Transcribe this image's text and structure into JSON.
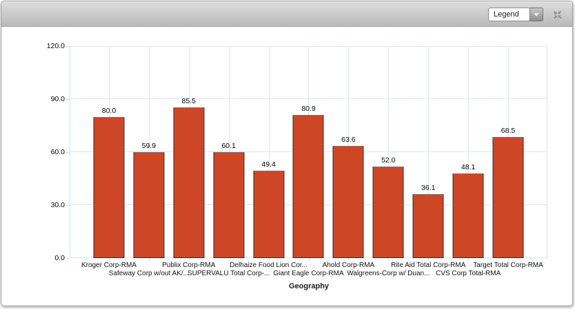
{
  "toolbar": {
    "legend_label": "Legend",
    "dropdown_icon": "chevron-down",
    "restore_icon": "collapse-arrows",
    "icon_color": "#8d8d8d"
  },
  "chart_data": {
    "type": "bar",
    "title": "",
    "xlabel": "Geography",
    "ylabel": "",
    "ylim": [
      0,
      120
    ],
    "yticks": [
      120,
      90,
      60,
      30,
      0
    ],
    "grid": true,
    "legend_position": "none",
    "data_labels": true,
    "categories": [
      "Kroger Corp-RMA",
      "Safeway Corp w/out AK/...",
      "Publix Corp-RMA",
      "SUPERVALU Total Corp-...",
      "Delhaize Food Lion Cor...",
      "Giant Eagle Corp-RMA",
      "Ahold Corp-RMA",
      "Walgreens-Corp w/ Duan...",
      "Rite Aid Total Corp-RMA",
      "CVS Corp Total-RMA",
      "Target Total Corp-RMA"
    ],
    "values": [
      80.0,
      59.9,
      85.5,
      60.1,
      49.4,
      80.9,
      63.6,
      52.0,
      36.1,
      48.1,
      68.5
    ],
    "bar_color": "#cd4727",
    "bar_border_color": "#2e2e2e",
    "grid_color": "#dbe7f6"
  }
}
